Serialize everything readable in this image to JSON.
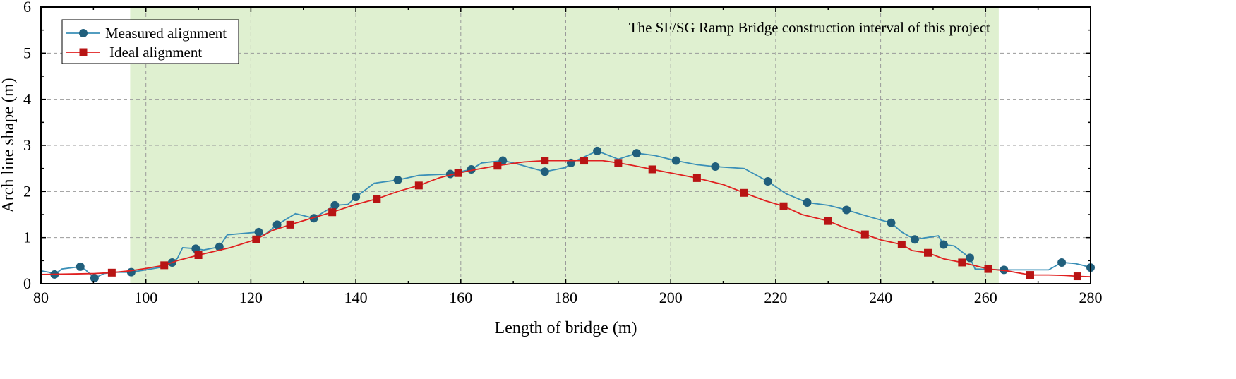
{
  "chart_data": {
    "type": "line",
    "title": "",
    "xlabel": "Length of bridge (m)",
    "ylabel": "Arch line shape (m)",
    "xlim": [
      80,
      280
    ],
    "ylim": [
      0,
      6
    ],
    "xticks": [
      80,
      100,
      120,
      140,
      160,
      180,
      200,
      220,
      240,
      260,
      280
    ],
    "yticks": [
      0,
      1,
      2,
      3,
      4,
      5,
      6
    ],
    "grid": true,
    "legend_position": "top-left",
    "shaded_region": {
      "x_start": 97,
      "x_end": 262.5,
      "color": "#dff0d0",
      "label": "The SF/SG Ramp Bridge construction interval of this project"
    },
    "series": [
      {
        "name": "Measured alignment",
        "color": "#3a8fb7",
        "marker": "circle",
        "marker_color": "#215f7c",
        "line": [
          [
            80,
            0.28
          ],
          [
            81.5,
            0.25
          ],
          [
            82.6,
            0.2
          ],
          [
            84,
            0.32
          ],
          [
            87.5,
            0.37
          ],
          [
            88.5,
            0.3
          ],
          [
            90.2,
            0.12
          ],
          [
            92,
            0.22
          ],
          [
            94,
            0.25
          ],
          [
            97.2,
            0.25
          ],
          [
            100,
            0.3
          ],
          [
            103,
            0.36
          ],
          [
            105,
            0.46
          ],
          [
            106,
            0.55
          ],
          [
            107,
            0.78
          ],
          [
            109.5,
            0.76
          ],
          [
            111,
            0.73
          ],
          [
            114,
            0.8
          ],
          [
            115.5,
            1.06
          ],
          [
            121.5,
            1.12
          ],
          [
            122.5,
            1.05
          ],
          [
            125,
            1.28
          ],
          [
            128.5,
            1.52
          ],
          [
            132,
            1.42
          ],
          [
            136,
            1.7
          ],
          [
            138.5,
            1.72
          ],
          [
            140,
            1.88
          ],
          [
            143.5,
            2.18
          ],
          [
            148,
            2.25
          ],
          [
            152,
            2.35
          ],
          [
            158,
            2.38
          ],
          [
            162,
            2.48
          ],
          [
            164,
            2.62
          ],
          [
            168,
            2.67
          ],
          [
            170,
            2.62
          ],
          [
            176,
            2.43
          ],
          [
            180,
            2.52
          ],
          [
            181,
            2.62
          ],
          [
            186,
            2.88
          ],
          [
            190,
            2.7
          ],
          [
            193.5,
            2.83
          ],
          [
            197,
            2.78
          ],
          [
            201,
            2.67
          ],
          [
            205,
            2.58
          ],
          [
            208.5,
            2.54
          ],
          [
            214,
            2.5
          ],
          [
            218.5,
            2.22
          ],
          [
            222,
            1.95
          ],
          [
            226,
            1.76
          ],
          [
            230,
            1.7
          ],
          [
            233.5,
            1.6
          ],
          [
            237,
            1.48
          ],
          [
            240,
            1.38
          ],
          [
            242,
            1.32
          ],
          [
            244,
            1.12
          ],
          [
            246.5,
            0.96
          ],
          [
            251,
            1.04
          ],
          [
            252,
            0.85
          ],
          [
            254,
            0.82
          ],
          [
            257,
            0.56
          ],
          [
            258,
            0.32
          ],
          [
            263.5,
            0.3
          ],
          [
            266,
            0.3
          ],
          [
            272,
            0.3
          ],
          [
            274.5,
            0.46
          ],
          [
            277,
            0.44
          ],
          [
            278.5,
            0.4
          ],
          [
            280,
            0.35
          ]
        ],
        "markers": [
          [
            82.6,
            0.2
          ],
          [
            87.5,
            0.37
          ],
          [
            90.2,
            0.12
          ],
          [
            97.2,
            0.25
          ],
          [
            105,
            0.46
          ],
          [
            109.5,
            0.76
          ],
          [
            114,
            0.8
          ],
          [
            121.5,
            1.12
          ],
          [
            125,
            1.28
          ],
          [
            132,
            1.42
          ],
          [
            136,
            1.7
          ],
          [
            140,
            1.88
          ],
          [
            148,
            2.25
          ],
          [
            158,
            2.38
          ],
          [
            162,
            2.48
          ],
          [
            168,
            2.67
          ],
          [
            176,
            2.43
          ],
          [
            181,
            2.62
          ],
          [
            186,
            2.88
          ],
          [
            193.5,
            2.83
          ],
          [
            201,
            2.67
          ],
          [
            208.5,
            2.54
          ],
          [
            218.5,
            2.22
          ],
          [
            226,
            1.76
          ],
          [
            233.5,
            1.6
          ],
          [
            242,
            1.32
          ],
          [
            246.5,
            0.96
          ],
          [
            252,
            0.85
          ],
          [
            257,
            0.56
          ],
          [
            263.5,
            0.3
          ],
          [
            274.5,
            0.46
          ],
          [
            280,
            0.35
          ]
        ]
      },
      {
        "name": "Ideal alignment",
        "color": "#e02020",
        "marker": "square",
        "marker_color": "#b81414",
        "line": [
          [
            80,
            0.2
          ],
          [
            85,
            0.21
          ],
          [
            90,
            0.22
          ],
          [
            93.5,
            0.24
          ],
          [
            97,
            0.28
          ],
          [
            100,
            0.33
          ],
          [
            103.5,
            0.4
          ],
          [
            106,
            0.5
          ],
          [
            110,
            0.62
          ],
          [
            116,
            0.78
          ],
          [
            121,
            0.96
          ],
          [
            124,
            1.15
          ],
          [
            127.5,
            1.28
          ],
          [
            131,
            1.4
          ],
          [
            135.5,
            1.55
          ],
          [
            140,
            1.72
          ],
          [
            144,
            1.84
          ],
          [
            148,
            2.0
          ],
          [
            152,
            2.13
          ],
          [
            156,
            2.3
          ],
          [
            159.5,
            2.4
          ],
          [
            163,
            2.48
          ],
          [
            167,
            2.56
          ],
          [
            172,
            2.64
          ],
          [
            176,
            2.67
          ],
          [
            180,
            2.67
          ],
          [
            183.5,
            2.67
          ],
          [
            187,
            2.67
          ],
          [
            190,
            2.62
          ],
          [
            193,
            2.56
          ],
          [
            196.5,
            2.48
          ],
          [
            201,
            2.38
          ],
          [
            205,
            2.29
          ],
          [
            210,
            2.15
          ],
          [
            214,
            1.97
          ],
          [
            218,
            1.8
          ],
          [
            221.5,
            1.68
          ],
          [
            225,
            1.5
          ],
          [
            230,
            1.36
          ],
          [
            233,
            1.22
          ],
          [
            237,
            1.07
          ],
          [
            240,
            0.95
          ],
          [
            244,
            0.85
          ],
          [
            246,
            0.72
          ],
          [
            249,
            0.67
          ],
          [
            252,
            0.54
          ],
          [
            255.5,
            0.46
          ],
          [
            260.5,
            0.32
          ],
          [
            264,
            0.28
          ],
          [
            268.5,
            0.19
          ],
          [
            272,
            0.19
          ],
          [
            275,
            0.18
          ],
          [
            277.5,
            0.16
          ],
          [
            280,
            0.15
          ]
        ],
        "markers": [
          [
            93.5,
            0.24
          ],
          [
            103.5,
            0.4
          ],
          [
            110,
            0.62
          ],
          [
            121,
            0.96
          ],
          [
            127.5,
            1.28
          ],
          [
            135.5,
            1.55
          ],
          [
            144,
            1.84
          ],
          [
            152,
            2.13
          ],
          [
            159.5,
            2.4
          ],
          [
            167,
            2.56
          ],
          [
            176,
            2.67
          ],
          [
            183.5,
            2.67
          ],
          [
            190,
            2.62
          ],
          [
            196.5,
            2.48
          ],
          [
            205,
            2.29
          ],
          [
            214,
            1.97
          ],
          [
            221.5,
            1.68
          ],
          [
            230,
            1.36
          ],
          [
            237,
            1.07
          ],
          [
            244,
            0.85
          ],
          [
            249,
            0.67
          ],
          [
            255.5,
            0.46
          ],
          [
            260.5,
            0.32
          ],
          [
            268.5,
            0.19
          ],
          [
            277.5,
            0.16
          ]
        ]
      }
    ]
  }
}
